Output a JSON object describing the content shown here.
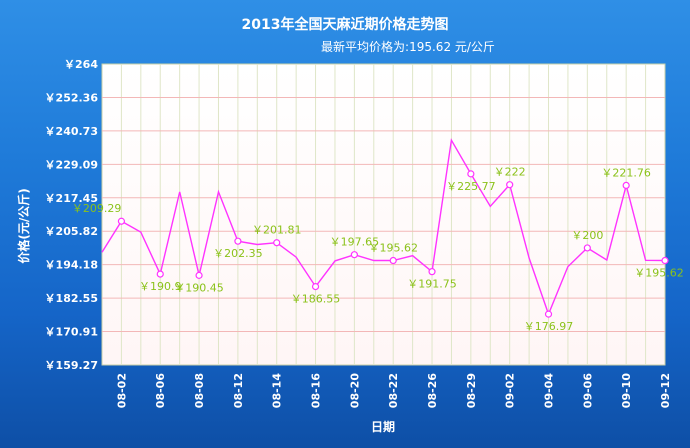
{
  "chart_data": {
    "type": "line",
    "title": "2013年全国天麻近期价格走势图",
    "subtitle": "最新平均价格为:195.62 元/公斤",
    "xlabel": "日期",
    "ylabel": "价格(元/公斤)",
    "ylim": [
      159.27,
      264
    ],
    "yticks": [
      "￥264",
      "￥252.36",
      "￥240.73",
      "￥229.09",
      "￥217.45",
      "￥205.82",
      "￥194.18",
      "￥182.55",
      "￥170.91",
      "￥159.27"
    ],
    "xticks": [
      "08-02",
      "08-06",
      "08-08",
      "08-12",
      "08-14",
      "08-16",
      "08-20",
      "08-22",
      "08-26",
      "08-29",
      "09-02",
      "09-04",
      "09-06",
      "09-10",
      "09-12"
    ],
    "grid": true,
    "series": [
      {
        "points": [
          {
            "x": 0,
            "y": 198.5
          },
          {
            "x": 1,
            "y": 209.29
          },
          {
            "x": 2,
            "y": 205.5
          },
          {
            "x": 3,
            "y": 190.9
          },
          {
            "x": 4,
            "y": 219.5
          },
          {
            "x": 5,
            "y": 190.45
          },
          {
            "x": 6,
            "y": 219.5
          },
          {
            "x": 7,
            "y": 202.35
          },
          {
            "x": 8,
            "y": 201.2
          },
          {
            "x": 9,
            "y": 201.81
          },
          {
            "x": 10,
            "y": 196.8
          },
          {
            "x": 11,
            "y": 186.55
          },
          {
            "x": 12,
            "y": 195.5
          },
          {
            "x": 13,
            "y": 197.65
          },
          {
            "x": 14,
            "y": 195.62
          },
          {
            "x": 15,
            "y": 195.62
          },
          {
            "x": 16,
            "y": 197.3
          },
          {
            "x": 17,
            "y": 191.75
          },
          {
            "x": 18,
            "y": 237.5
          },
          {
            "x": 19,
            "y": 225.77
          },
          {
            "x": 20,
            "y": 214.5
          },
          {
            "x": 21,
            "y": 222
          },
          {
            "x": 22,
            "y": 196.5
          },
          {
            "x": 23,
            "y": 176.97
          },
          {
            "x": 24,
            "y": 193.5
          },
          {
            "x": 25,
            "y": 200
          },
          {
            "x": 26,
            "y": 195.8
          },
          {
            "x": 27,
            "y": 221.76
          },
          {
            "x": 28,
            "y": 195.7
          },
          {
            "x": 29,
            "y": 195.62
          }
        ]
      }
    ],
    "data_labels": [
      {
        "x": 1,
        "text": "￥209.29"
      },
      {
        "x": 3,
        "text": "￥190.9"
      },
      {
        "x": 5,
        "text": "￥190.45"
      },
      {
        "x": 7,
        "text": "￥202.35"
      },
      {
        "x": 9,
        "text": "￥201.81"
      },
      {
        "x": 11,
        "text": "￥186.55"
      },
      {
        "x": 13,
        "text": "￥197.65"
      },
      {
        "x": 15,
        "text": "￥195.62"
      },
      {
        "x": 17,
        "text": "￥191.75"
      },
      {
        "x": 19,
        "text": "￥225.77"
      },
      {
        "x": 21,
        "text": "￥222"
      },
      {
        "x": 23,
        "text": "￥176.97"
      },
      {
        "x": 25,
        "text": "￥200"
      },
      {
        "x": 27,
        "text": "￥221.76"
      },
      {
        "x": 29,
        "text": "￥195.62"
      }
    ],
    "colors": {
      "line": "#ff33ff",
      "marker_fill": "#ffffff",
      "data_label": "#8bc21a",
      "grid_vertical": "#dfe6c8",
      "grid_horizontal": "#f3b7b7",
      "plot_bg": "#ffffff",
      "plot_bg_tint": "#fff3f3",
      "background_top": "#2f8fe6",
      "background_bottom": "#0e4fa6"
    }
  }
}
